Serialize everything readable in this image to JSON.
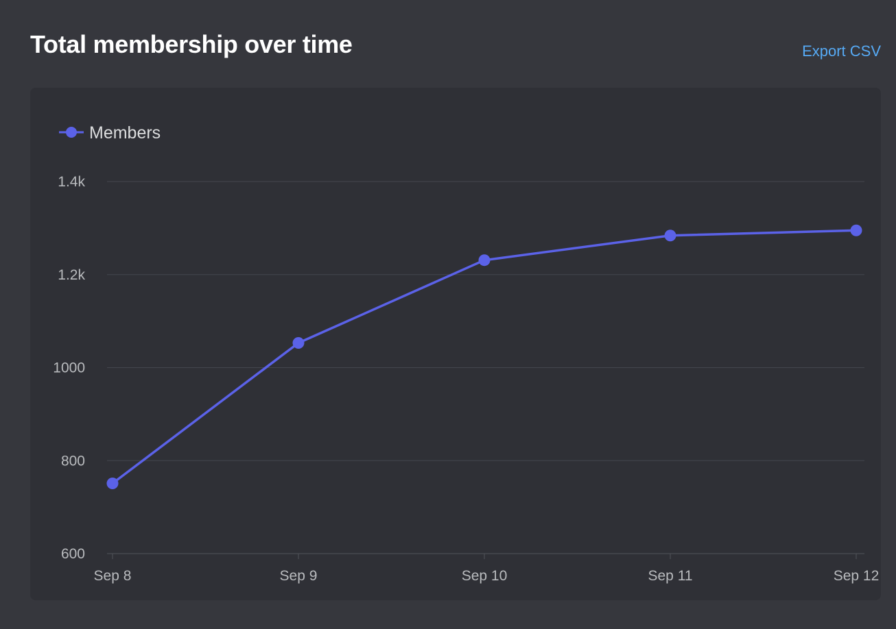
{
  "header": {
    "title": "Total membership over time",
    "export_label": "Export CSV"
  },
  "colors": {
    "background": "#36373d",
    "panel": "#2f3036",
    "series": "#5b62e8",
    "link": "#56aaf5"
  },
  "chart_data": {
    "type": "line",
    "title": "Total membership over time",
    "xlabel": "",
    "ylabel": "",
    "categories": [
      "Sep 8",
      "Sep 9",
      "Sep 10",
      "Sep 11",
      "Sep 12"
    ],
    "series": [
      {
        "name": "Members",
        "values": [
          751,
          1053,
          1231,
          1284,
          1295
        ]
      }
    ],
    "ylim": [
      600,
      1400
    ],
    "yticks": [
      600,
      800,
      1000,
      1200,
      1400
    ],
    "ytick_labels": [
      "600",
      "800",
      "1000",
      "1.2k",
      "1.4k"
    ],
    "grid": true,
    "legend": "top-left"
  }
}
